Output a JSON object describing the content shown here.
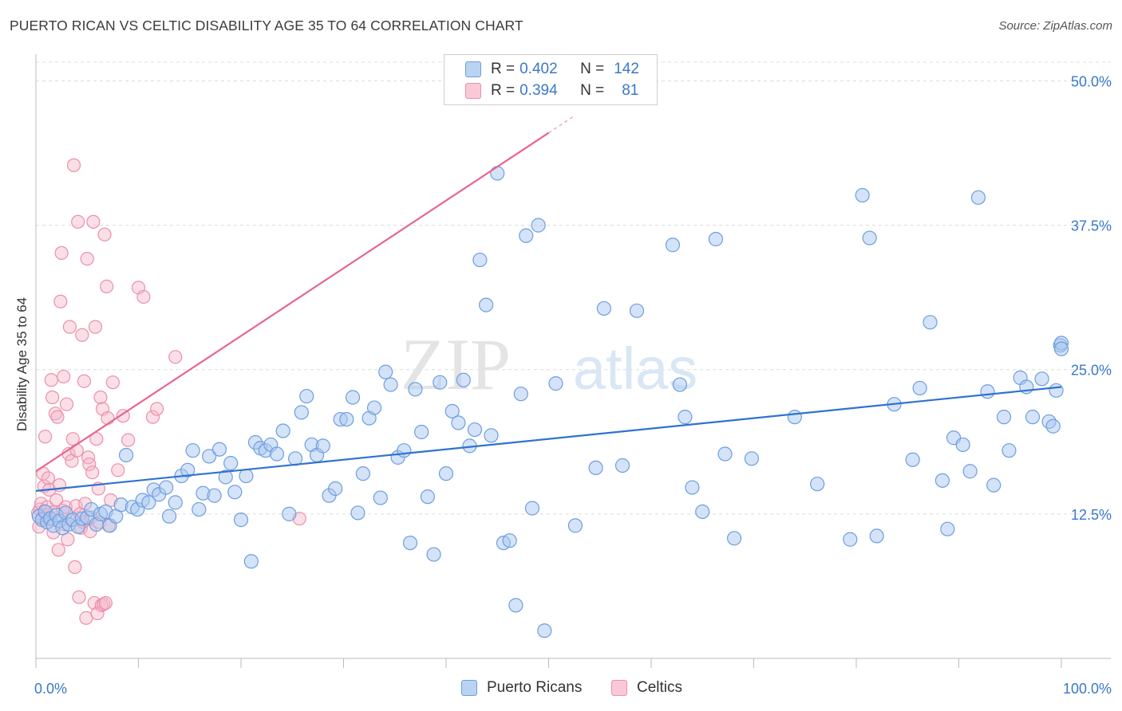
{
  "title": "PUERTO RICAN VS CELTIC DISABILITY AGE 35 TO 64 CORRELATION CHART",
  "source": "Source: ZipAtlas.com",
  "watermark": {
    "zip": "ZIP",
    "atlas": "atlas"
  },
  "colors": {
    "blue_fill": "#a9c8ef",
    "blue_stroke": "#6d9ee0",
    "blue_line": "#2f72d0",
    "pink_fill": "#f5b8ca",
    "pink_stroke": "#ec8fab",
    "pink_line": "#e8658e",
    "axis_text": "#3a78c8",
    "grid": "#dcdcdc"
  },
  "legend": {
    "rows": [
      {
        "r_label": "R =",
        "r_value": "0.402",
        "n_label": "N =",
        "n_value": "142"
      },
      {
        "r_label": "R =",
        "r_value": "0.394",
        "n_label": "N =",
        "n_value": "81"
      }
    ]
  },
  "bottom_legend": {
    "series1": "Puerto Ricans",
    "series2": "Celtics"
  },
  "chart_data": {
    "type": "scatter",
    "title": "PUERTO RICAN VS CELTIC DISABILITY AGE 35 TO 64 CORRELATION CHART",
    "xlabel": "",
    "ylabel": "Disability Age 35 to 64",
    "xlim": [
      0,
      100
    ],
    "ylim": [
      0,
      53
    ],
    "x_tick_labels": [
      "0.0%",
      "100.0%"
    ],
    "y_ticks": [
      12.5,
      25.0,
      37.5,
      50.0
    ],
    "y_tick_labels": [
      "12.5%",
      "25.0%",
      "37.5%",
      "50.0%"
    ],
    "series": [
      {
        "name": "Puerto Ricans",
        "R": 0.402,
        "N": 142,
        "trend": {
          "x0": 0,
          "y0": 14.5,
          "x1": 100,
          "y1": 23.5
        },
        "points": [
          [
            0.3,
            12.3
          ],
          [
            0.6,
            12.0
          ],
          [
            0.9,
            12.7
          ],
          [
            1.1,
            11.8
          ],
          [
            1.4,
            12.1
          ],
          [
            1.7,
            11.5
          ],
          [
            2.0,
            12.4
          ],
          [
            2.3,
            11.9
          ],
          [
            2.6,
            11.3
          ],
          [
            2.9,
            12.6
          ],
          [
            3.2,
            11.6
          ],
          [
            3.6,
            12.0
          ],
          [
            4.1,
            11.4
          ],
          [
            4.5,
            12.1
          ],
          [
            5.0,
            12.2
          ],
          [
            5.4,
            12.9
          ],
          [
            5.9,
            11.6
          ],
          [
            6.3,
            12.5
          ],
          [
            6.8,
            12.7
          ],
          [
            7.2,
            11.5
          ],
          [
            7.8,
            12.3
          ],
          [
            8.3,
            13.3
          ],
          [
            8.8,
            17.6
          ],
          [
            9.4,
            13.1
          ],
          [
            9.9,
            12.9
          ],
          [
            10.4,
            13.7
          ],
          [
            11.0,
            13.5
          ],
          [
            11.5,
            14.6
          ],
          [
            12.0,
            14.2
          ],
          [
            12.7,
            14.8
          ],
          [
            13.0,
            12.3
          ],
          [
            13.6,
            13.5
          ],
          [
            14.2,
            15.8
          ],
          [
            14.8,
            16.3
          ],
          [
            15.3,
            18.0
          ],
          [
            15.9,
            12.9
          ],
          [
            16.3,
            14.3
          ],
          [
            16.9,
            17.5
          ],
          [
            17.4,
            14.1
          ],
          [
            17.9,
            18.1
          ],
          [
            18.5,
            15.7
          ],
          [
            19.0,
            16.9
          ],
          [
            19.4,
            14.4
          ],
          [
            20.0,
            12.0
          ],
          [
            20.5,
            15.8
          ],
          [
            21.0,
            8.4
          ],
          [
            21.4,
            18.7
          ],
          [
            21.9,
            18.2
          ],
          [
            22.4,
            18.0
          ],
          [
            22.9,
            18.5
          ],
          [
            23.5,
            17.7
          ],
          [
            24.1,
            19.7
          ],
          [
            24.7,
            12.5
          ],
          [
            25.3,
            17.3
          ],
          [
            25.9,
            21.3
          ],
          [
            26.4,
            22.7
          ],
          [
            26.9,
            18.5
          ],
          [
            27.4,
            17.6
          ],
          [
            28.0,
            18.4
          ],
          [
            28.6,
            14.1
          ],
          [
            29.2,
            14.7
          ],
          [
            29.7,
            20.7
          ],
          [
            30.3,
            20.7
          ],
          [
            30.9,
            22.6
          ],
          [
            31.4,
            12.6
          ],
          [
            31.9,
            16.0
          ],
          [
            32.5,
            20.8
          ],
          [
            33.0,
            21.7
          ],
          [
            33.6,
            13.9
          ],
          [
            34.1,
            24.8
          ],
          [
            34.6,
            23.7
          ],
          [
            35.3,
            17.4
          ],
          [
            35.9,
            18.0
          ],
          [
            36.5,
            10.0
          ],
          [
            37.0,
            23.3
          ],
          [
            37.6,
            19.6
          ],
          [
            38.2,
            14.0
          ],
          [
            38.8,
            9.0
          ],
          [
            39.4,
            23.9
          ],
          [
            40.0,
            16.0
          ],
          [
            40.6,
            21.4
          ],
          [
            41.2,
            20.4
          ],
          [
            41.7,
            24.1
          ],
          [
            42.3,
            18.4
          ],
          [
            42.8,
            19.8
          ],
          [
            43.3,
            34.5
          ],
          [
            43.9,
            30.6
          ],
          [
            44.4,
            19.3
          ],
          [
            45.0,
            42.0
          ],
          [
            45.6,
            10.0
          ],
          [
            46.2,
            10.2
          ],
          [
            46.8,
            4.6
          ],
          [
            47.3,
            22.9
          ],
          [
            47.8,
            36.6
          ],
          [
            48.4,
            13.0
          ],
          [
            49.0,
            37.5
          ],
          [
            49.6,
            2.4
          ],
          [
            50.7,
            23.8
          ],
          [
            52.6,
            11.5
          ],
          [
            54.6,
            16.5
          ],
          [
            55.4,
            30.3
          ],
          [
            57.2,
            16.7
          ],
          [
            58.6,
            30.1
          ],
          [
            62.1,
            35.8
          ],
          [
            62.8,
            23.7
          ],
          [
            63.3,
            20.9
          ],
          [
            64.0,
            14.8
          ],
          [
            65.0,
            12.7
          ],
          [
            66.3,
            36.3
          ],
          [
            67.2,
            17.7
          ],
          [
            68.1,
            10.4
          ],
          [
            69.8,
            17.3
          ],
          [
            74.0,
            20.9
          ],
          [
            76.2,
            15.1
          ],
          [
            79.4,
            10.3
          ],
          [
            80.6,
            40.1
          ],
          [
            81.3,
            36.4
          ],
          [
            82.0,
            10.6
          ],
          [
            83.7,
            22.0
          ],
          [
            85.5,
            17.2
          ],
          [
            86.2,
            23.4
          ],
          [
            87.2,
            29.1
          ],
          [
            88.4,
            15.4
          ],
          [
            88.9,
            11.2
          ],
          [
            89.5,
            19.1
          ],
          [
            90.4,
            18.5
          ],
          [
            91.1,
            16.2
          ],
          [
            91.9,
            39.9
          ],
          [
            92.8,
            23.1
          ],
          [
            93.4,
            15.0
          ],
          [
            94.4,
            20.9
          ],
          [
            94.9,
            18.0
          ],
          [
            96.0,
            24.3
          ],
          [
            96.6,
            23.5
          ],
          [
            97.2,
            20.9
          ],
          [
            98.1,
            24.2
          ],
          [
            98.8,
            20.5
          ],
          [
            99.2,
            20.1
          ],
          [
            99.5,
            23.2
          ],
          [
            99.9,
            27.1
          ],
          [
            100.0,
            27.3
          ],
          [
            100.0,
            26.8
          ]
        ]
      },
      {
        "name": "Celtics",
        "R": 0.394,
        "N": 81,
        "trend": {
          "x0": 0,
          "y0": 16.2,
          "x1": 50,
          "y1": 45.5
        },
        "points": [
          [
            0.2,
            12.6
          ],
          [
            0.3,
            11.4
          ],
          [
            0.4,
            12.9
          ],
          [
            0.5,
            13.4
          ],
          [
            0.6,
            12.1
          ],
          [
            0.7,
            16.0
          ],
          [
            0.8,
            14.9
          ],
          [
            0.9,
            19.2
          ],
          [
            1.0,
            12.4
          ],
          [
            1.1,
            13.1
          ],
          [
            1.2,
            15.6
          ],
          [
            1.3,
            14.6
          ],
          [
            1.4,
            12.2
          ],
          [
            1.5,
            24.1
          ],
          [
            1.6,
            22.6
          ],
          [
            1.7,
            10.9
          ],
          [
            1.8,
            12.7
          ],
          [
            1.9,
            21.2
          ],
          [
            2.0,
            13.7
          ],
          [
            2.1,
            20.9
          ],
          [
            2.2,
            9.4
          ],
          [
            2.3,
            15.0
          ],
          [
            2.4,
            30.9
          ],
          [
            2.5,
            35.1
          ],
          [
            2.6,
            12.8
          ],
          [
            2.7,
            24.4
          ],
          [
            2.8,
            11.6
          ],
          [
            2.9,
            13.1
          ],
          [
            3.0,
            22.0
          ],
          [
            3.1,
            10.3
          ],
          [
            3.2,
            17.7
          ],
          [
            3.3,
            28.7
          ],
          [
            3.4,
            12.0
          ],
          [
            3.5,
            17.1
          ],
          [
            3.6,
            19.0
          ],
          [
            3.7,
            42.7
          ],
          [
            3.8,
            7.9
          ],
          [
            3.9,
            13.2
          ],
          [
            4.0,
            18.0
          ],
          [
            4.1,
            37.8
          ],
          [
            4.2,
            5.3
          ],
          [
            4.3,
            12.5
          ],
          [
            4.4,
            11.3
          ],
          [
            4.5,
            28.0
          ],
          [
            4.6,
            11.8
          ],
          [
            4.7,
            24.0
          ],
          [
            4.8,
            13.4
          ],
          [
            4.9,
            3.5
          ],
          [
            5.0,
            34.6
          ],
          [
            5.1,
            17.4
          ],
          [
            5.2,
            16.8
          ],
          [
            5.3,
            11.0
          ],
          [
            5.4,
            12.2
          ],
          [
            5.5,
            16.1
          ],
          [
            5.6,
            37.8
          ],
          [
            5.7,
            4.8
          ],
          [
            5.8,
            28.7
          ],
          [
            5.9,
            19.0
          ],
          [
            6.0,
            3.9
          ],
          [
            6.1,
            14.7
          ],
          [
            6.2,
            11.8
          ],
          [
            6.3,
            22.6
          ],
          [
            6.4,
            4.6
          ],
          [
            6.5,
            21.6
          ],
          [
            6.6,
            4.7
          ],
          [
            6.7,
            36.7
          ],
          [
            6.8,
            4.8
          ],
          [
            6.9,
            32.2
          ],
          [
            7.0,
            20.8
          ],
          [
            7.1,
            11.5
          ],
          [
            7.3,
            13.7
          ],
          [
            7.5,
            23.9
          ],
          [
            8.0,
            16.3
          ],
          [
            8.5,
            21.0
          ],
          [
            9.0,
            18.9
          ],
          [
            10.0,
            32.1
          ],
          [
            10.5,
            31.3
          ],
          [
            11.4,
            20.9
          ],
          [
            11.8,
            21.6
          ],
          [
            13.6,
            26.1
          ],
          [
            25.7,
            12.1
          ]
        ]
      }
    ]
  }
}
